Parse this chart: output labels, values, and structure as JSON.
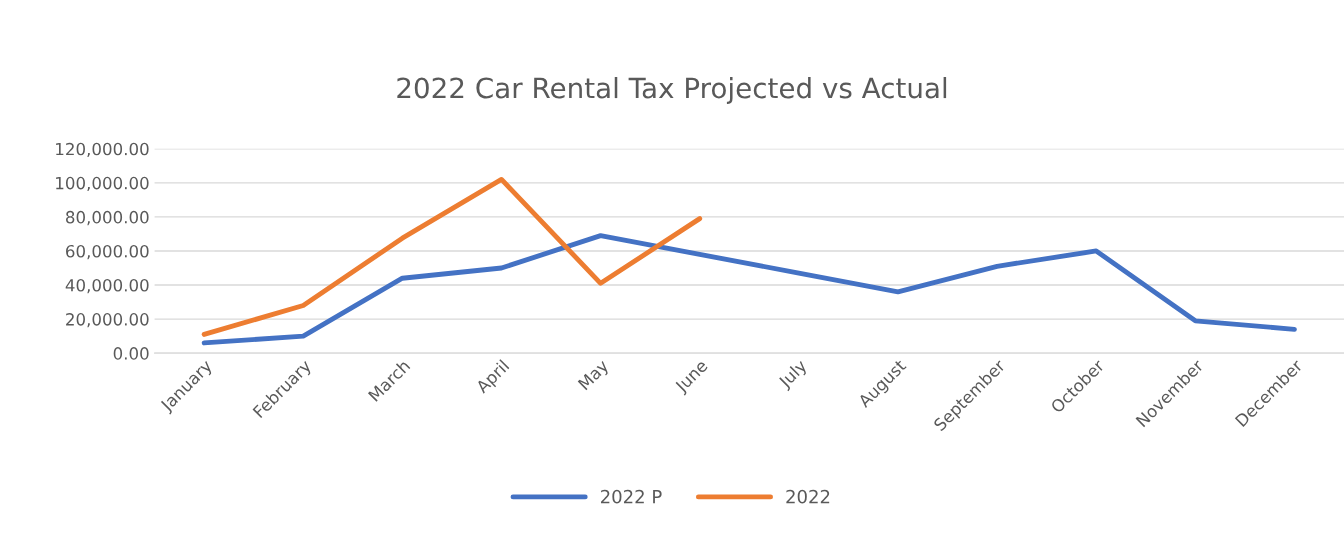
{
  "chart_data": {
    "type": "line",
    "title": "2022 Car Rental Tax Projected vs Actual",
    "categories": [
      "January",
      "February",
      "March",
      "April",
      "May",
      "June",
      "July",
      "August",
      "September",
      "October",
      "November",
      "December"
    ],
    "series": [
      {
        "name": "2022 P",
        "color": "#4472c4",
        "values": [
          6000,
          10000,
          44000,
          50000,
          69000,
          58000,
          47000,
          36000,
          51000,
          60000,
          19000,
          14000
        ]
      },
      {
        "name": "2022",
        "color": "#ed7d31",
        "values": [
          11000,
          28000,
          67500,
          102000,
          41000,
          79000,
          null,
          null,
          null,
          null,
          null,
          null
        ]
      }
    ],
    "ylim": [
      0,
      120000
    ],
    "yticks": [
      {
        "value": 0,
        "label": "0.00"
      },
      {
        "value": 20000,
        "label": "20,000.00"
      },
      {
        "value": 40000,
        "label": "40,000.00"
      },
      {
        "value": 60000,
        "label": "60,000.00"
      },
      {
        "value": 80000,
        "label": "80,000.00"
      },
      {
        "value": 100000,
        "label": "100,000.00"
      },
      {
        "value": 120000,
        "label": "120,000.00"
      }
    ],
    "grid": "y",
    "legend": "bottom",
    "marker": "none",
    "line_style": "solid"
  }
}
